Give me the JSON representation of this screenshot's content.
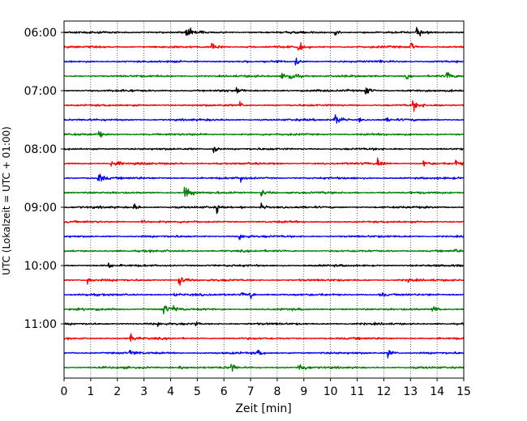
{
  "chart_data": {
    "type": "line",
    "title": "",
    "xlabel": "Zeit  [min]",
    "ylabel": "UTC (Lokalzeit = UTC + 01:00)",
    "xlim": [
      0,
      15
    ],
    "x_ticks": [
      "0",
      "1",
      "2",
      "3",
      "4",
      "5",
      "6",
      "7",
      "8",
      "9",
      "10",
      "11",
      "12",
      "13",
      "14",
      "15"
    ],
    "y_ticks": [
      "06:00",
      "07:00",
      "08:00",
      "09:00",
      "10:00",
      "11:00"
    ],
    "grid": "vertical dotted lines at each minute",
    "rows_per_hour": 4,
    "row_minutes": 15,
    "trace_colors": [
      "#000000",
      "#ff0000",
      "#0000ff",
      "#008000"
    ],
    "series": [
      {
        "start": "06:00",
        "color": "#000000"
      },
      {
        "start": "06:15",
        "color": "#ff0000"
      },
      {
        "start": "06:30",
        "color": "#0000ff"
      },
      {
        "start": "06:45",
        "color": "#008000"
      },
      {
        "start": "07:00",
        "color": "#000000"
      },
      {
        "start": "07:15",
        "color": "#ff0000"
      },
      {
        "start": "07:30",
        "color": "#0000ff"
      },
      {
        "start": "07:45",
        "color": "#008000"
      },
      {
        "start": "08:00",
        "color": "#000000"
      },
      {
        "start": "08:15",
        "color": "#ff0000"
      },
      {
        "start": "08:30",
        "color": "#0000ff"
      },
      {
        "start": "08:45",
        "color": "#008000"
      },
      {
        "start": "09:00",
        "color": "#000000"
      },
      {
        "start": "09:15",
        "color": "#ff0000"
      },
      {
        "start": "09:30",
        "color": "#0000ff"
      },
      {
        "start": "09:45",
        "color": "#008000"
      },
      {
        "start": "10:00",
        "color": "#000000"
      },
      {
        "start": "10:15",
        "color": "#ff0000"
      },
      {
        "start": "10:30",
        "color": "#0000ff"
      },
      {
        "start": "10:45",
        "color": "#008000"
      },
      {
        "start": "11:00",
        "color": "#000000"
      },
      {
        "start": "11:15",
        "color": "#ff0000"
      },
      {
        "start": "11:30",
        "color": "#0000ff"
      },
      {
        "start": "11:45",
        "color": "#008000"
      }
    ]
  }
}
